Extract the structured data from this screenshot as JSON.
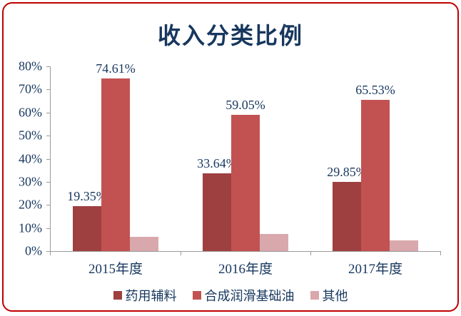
{
  "frame": {
    "border_color": "#C00000",
    "background_color": "#FFFFFF",
    "text_color": "#17375E",
    "axis_color": "#9B9B9B"
  },
  "chart_data": {
    "type": "bar",
    "title": "收入分类比例",
    "categories": [
      "2015年度",
      "2016年度",
      "2017年度"
    ],
    "series": [
      {
        "name": "药用辅料",
        "color": "#9E4040",
        "values": [
          19.35,
          33.64,
          29.85
        ],
        "data_labels": [
          "19.35%",
          "33.64%",
          "29.85%"
        ]
      },
      {
        "name": "合成润滑基础油",
        "color": "#C25252",
        "values": [
          74.61,
          59.05,
          65.53
        ],
        "data_labels": [
          "74.61%",
          "59.05%",
          "65.53%"
        ]
      },
      {
        "name": "其他",
        "color": "#D9A8AC",
        "values": [
          6.04,
          7.31,
          4.62
        ],
        "data_labels": [
          "",
          "",
          ""
        ]
      }
    ],
    "ylim": [
      0,
      80
    ],
    "ytick_step": 10,
    "ytick_labels": [
      "0%",
      "10%",
      "20%",
      "30%",
      "40%",
      "50%",
      "60%",
      "70%",
      "80%"
    ],
    "grid": false,
    "legend_position": "bottom"
  }
}
